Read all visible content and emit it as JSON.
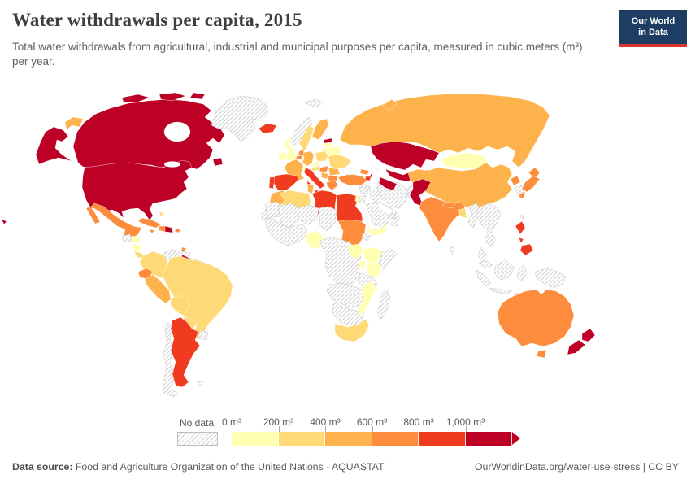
{
  "header": {
    "title": "Water withdrawals per capita, 2015",
    "subtitle": "Total water withdrawals from agricultural, industrial and municipal purposes per capita, measured in cubic meters (m³) per year.",
    "logo": {
      "line1": "Our World",
      "line2": "in Data"
    }
  },
  "colors": {
    "logo_bg": "#1d3d63",
    "logo_accent": "#d8352f",
    "label_gray": "#5b5b5b"
  },
  "legend_static": {
    "no_data_label": "No data"
  },
  "footer": {
    "source_label": "Data source:",
    "source_value": " Food and Agriculture Organization of the United Nations - AQUASTAT",
    "credit": "OurWorldinData.org/water-use-stress | CC BY"
  },
  "chart_data": {
    "type": "choropleth-map",
    "title": "Water withdrawals per capita, 2015",
    "unit": "m³ per year",
    "year": 2015,
    "legend": {
      "no_data": {
        "label": "No data",
        "pattern": "diagonal-hatch"
      },
      "tick_labels": [
        "0 m³",
        "200 m³",
        "400 m³",
        "600 m³",
        "800 m³",
        "1,000 m³"
      ],
      "bins": [
        {
          "id": "0-200",
          "range": [
            0,
            200
          ],
          "color": "#ffffb2"
        },
        {
          "id": "200-400",
          "range": [
            200,
            400
          ],
          "color": "#fed976"
        },
        {
          "id": "400-600",
          "range": [
            400,
            600
          ],
          "color": "#feb24c"
        },
        {
          "id": "600-800",
          "range": [
            600,
            800
          ],
          "color": "#fd8d3c"
        },
        {
          "id": "800-1000",
          "range": [
            800,
            1000
          ],
          "color": "#f03b20"
        },
        {
          "id": "1000+",
          "range": [
            1000,
            null
          ],
          "color": "#bd0026"
        }
      ]
    },
    "countries": [
      {
        "name": "canada",
        "bin": "1000+"
      },
      {
        "name": "usa",
        "bin": "1000+"
      },
      {
        "name": "greenland",
        "bin": "no-data"
      },
      {
        "name": "mexico",
        "bin": "600-800"
      },
      {
        "name": "guatemala",
        "bin": "no-data"
      },
      {
        "name": "honduras",
        "bin": "0-200"
      },
      {
        "name": "nicaragua",
        "bin": "0-200"
      },
      {
        "name": "costa-rica",
        "bin": "200-400"
      },
      {
        "name": "panama",
        "bin": "600-800"
      },
      {
        "name": "cuba",
        "bin": "600-800"
      },
      {
        "name": "jamaica",
        "bin": "600-800"
      },
      {
        "name": "haiti",
        "bin": "600-800"
      },
      {
        "name": "dominican-republic",
        "bin": "1000+"
      },
      {
        "name": "puerto-rico",
        "bin": "600-800"
      },
      {
        "name": "bahamas",
        "bin": "200-400"
      },
      {
        "name": "trinidad-and-tobago",
        "bin": "600-800"
      },
      {
        "name": "colombia",
        "bin": "200-400"
      },
      {
        "name": "venezuela",
        "bin": "no-data"
      },
      {
        "name": "guyana",
        "bin": "1000+"
      },
      {
        "name": "suriname",
        "bin": "no-data"
      },
      {
        "name": "french-guiana",
        "bin": "no-data"
      },
      {
        "name": "ecuador",
        "bin": "600-800"
      },
      {
        "name": "peru",
        "bin": "400-600"
      },
      {
        "name": "brazil",
        "bin": "200-400"
      },
      {
        "name": "bolivia",
        "bin": "200-400"
      },
      {
        "name": "paraguay",
        "bin": "200-400"
      },
      {
        "name": "uruguay",
        "bin": "no-data"
      },
      {
        "name": "argentina",
        "bin": "800-1000"
      },
      {
        "name": "chile",
        "bin": "no-data"
      },
      {
        "name": "falkland-islands",
        "bin": "no-data"
      },
      {
        "name": "iceland",
        "bin": "800-1000"
      },
      {
        "name": "ireland",
        "bin": "0-200"
      },
      {
        "name": "united-kingdom",
        "bin": "0-200"
      },
      {
        "name": "norway",
        "bin": "no-data"
      },
      {
        "name": "sweden",
        "bin": "200-400"
      },
      {
        "name": "finland",
        "bin": "400-600"
      },
      {
        "name": "denmark",
        "bin": "200-400"
      },
      {
        "name": "estonia",
        "bin": "1000+"
      },
      {
        "name": "latvia",
        "bin": "0-200"
      },
      {
        "name": "lithuania",
        "bin": "0-200"
      },
      {
        "name": "belarus",
        "bin": "0-200"
      },
      {
        "name": "poland",
        "bin": "200-400"
      },
      {
        "name": "germany",
        "bin": "400-600"
      },
      {
        "name": "netherlands",
        "bin": "600-800"
      },
      {
        "name": "belgium",
        "bin": "600-800"
      },
      {
        "name": "france",
        "bin": "400-600"
      },
      {
        "name": "switzerland",
        "bin": "0-200"
      },
      {
        "name": "czechia",
        "bin": "0-200"
      },
      {
        "name": "austria",
        "bin": "200-400"
      },
      {
        "name": "hungary",
        "bin": "600-800"
      },
      {
        "name": "ukraine",
        "bin": "200-400"
      },
      {
        "name": "romania",
        "bin": "400-600"
      },
      {
        "name": "serbia",
        "bin": "400-600"
      },
      {
        "name": "bulgaria",
        "bin": "600-800"
      },
      {
        "name": "greece",
        "bin": "600-800"
      },
      {
        "name": "italy",
        "bin": "800-1000"
      },
      {
        "name": "spain",
        "bin": "800-1000"
      },
      {
        "name": "portugal",
        "bin": "800-1000"
      },
      {
        "name": "svalbard",
        "bin": "no-data"
      },
      {
        "name": "morocco",
        "bin": "400-600"
      },
      {
        "name": "western-sahara",
        "bin": "no-data"
      },
      {
        "name": "algeria",
        "bin": "200-400"
      },
      {
        "name": "tunisia",
        "bin": "400-600"
      },
      {
        "name": "libya",
        "bin": "800-1000"
      },
      {
        "name": "egypt",
        "bin": "800-1000"
      },
      {
        "name": "mauritania",
        "bin": "no-data"
      },
      {
        "name": "mali",
        "bin": "no-data"
      },
      {
        "name": "niger",
        "bin": "no-data"
      },
      {
        "name": "chad",
        "bin": "no-data"
      },
      {
        "name": "sudan",
        "bin": "600-800"
      },
      {
        "name": "eritrea",
        "bin": "no-data"
      },
      {
        "name": "west-africa",
        "bin": "no-data"
      },
      {
        "name": "nigeria",
        "bin": "0-200"
      },
      {
        "name": "central-africa",
        "bin": "no-data"
      },
      {
        "name": "south-sudan",
        "bin": "0-200"
      },
      {
        "name": "ethiopia",
        "bin": "0-200"
      },
      {
        "name": "somalia",
        "bin": "no-data"
      },
      {
        "name": "kenya",
        "bin": "0-200"
      },
      {
        "name": "uganda",
        "bin": "0-200"
      },
      {
        "name": "tanzania",
        "bin": "no-data"
      },
      {
        "name": "angola-zambia",
        "bin": "no-data"
      },
      {
        "name": "namibia-botswana",
        "bin": "no-data"
      },
      {
        "name": "mozambique",
        "bin": "0-200"
      },
      {
        "name": "south-africa",
        "bin": "200-400"
      },
      {
        "name": "madagascar",
        "bin": "no-data"
      },
      {
        "name": "turkey",
        "bin": "600-800"
      },
      {
        "name": "syria",
        "bin": "no-data"
      },
      {
        "name": "israel",
        "bin": "0-200"
      },
      {
        "name": "jordan",
        "bin": "no-data"
      },
      {
        "name": "iraq",
        "bin": "no-data"
      },
      {
        "name": "saudi-arabia",
        "bin": "no-data"
      },
      {
        "name": "yemen",
        "bin": "0-200"
      },
      {
        "name": "oman",
        "bin": "no-data"
      },
      {
        "name": "united-arab-emirates",
        "bin": "no-data"
      },
      {
        "name": "iran",
        "bin": "no-data"
      },
      {
        "name": "afghanistan",
        "bin": "no-data"
      },
      {
        "name": "georgia",
        "bin": "600-800"
      },
      {
        "name": "armenia",
        "bin": "800-1000"
      },
      {
        "name": "azerbaijan",
        "bin": "1000+"
      },
      {
        "name": "kazakhstan",
        "bin": "1000+"
      },
      {
        "name": "uzbekistan",
        "bin": "1000+"
      },
      {
        "name": "turkmenistan",
        "bin": "1000+"
      },
      {
        "name": "kyrgyzstan",
        "bin": "1000+"
      },
      {
        "name": "tajikistan",
        "bin": "1000+"
      },
      {
        "name": "russia",
        "bin": "400-600"
      },
      {
        "name": "mongolia",
        "bin": "0-200"
      },
      {
        "name": "china",
        "bin": "400-600"
      },
      {
        "name": "north-korea",
        "bin": "600-800"
      },
      {
        "name": "south-korea",
        "bin": "no-data"
      },
      {
        "name": "japan",
        "bin": "600-800"
      },
      {
        "name": "taiwan",
        "bin": "no-data"
      },
      {
        "name": "pakistan",
        "bin": "1000+"
      },
      {
        "name": "india",
        "bin": "600-800"
      },
      {
        "name": "nepal",
        "bin": "600-800"
      },
      {
        "name": "bangladesh",
        "bin": "200-400"
      },
      {
        "name": "sri-lanka",
        "bin": "no-data"
      },
      {
        "name": "myanmar",
        "bin": "no-data"
      },
      {
        "name": "southeast-asia",
        "bin": "no-data"
      },
      {
        "name": "malaysia",
        "bin": "no-data"
      },
      {
        "name": "indonesia",
        "bin": "no-data"
      },
      {
        "name": "new-guinea",
        "bin": "no-data"
      },
      {
        "name": "philippines",
        "bin": "800-1000"
      },
      {
        "name": "australia",
        "bin": "600-800"
      },
      {
        "name": "new-zealand",
        "bin": "1000+"
      }
    ]
  }
}
